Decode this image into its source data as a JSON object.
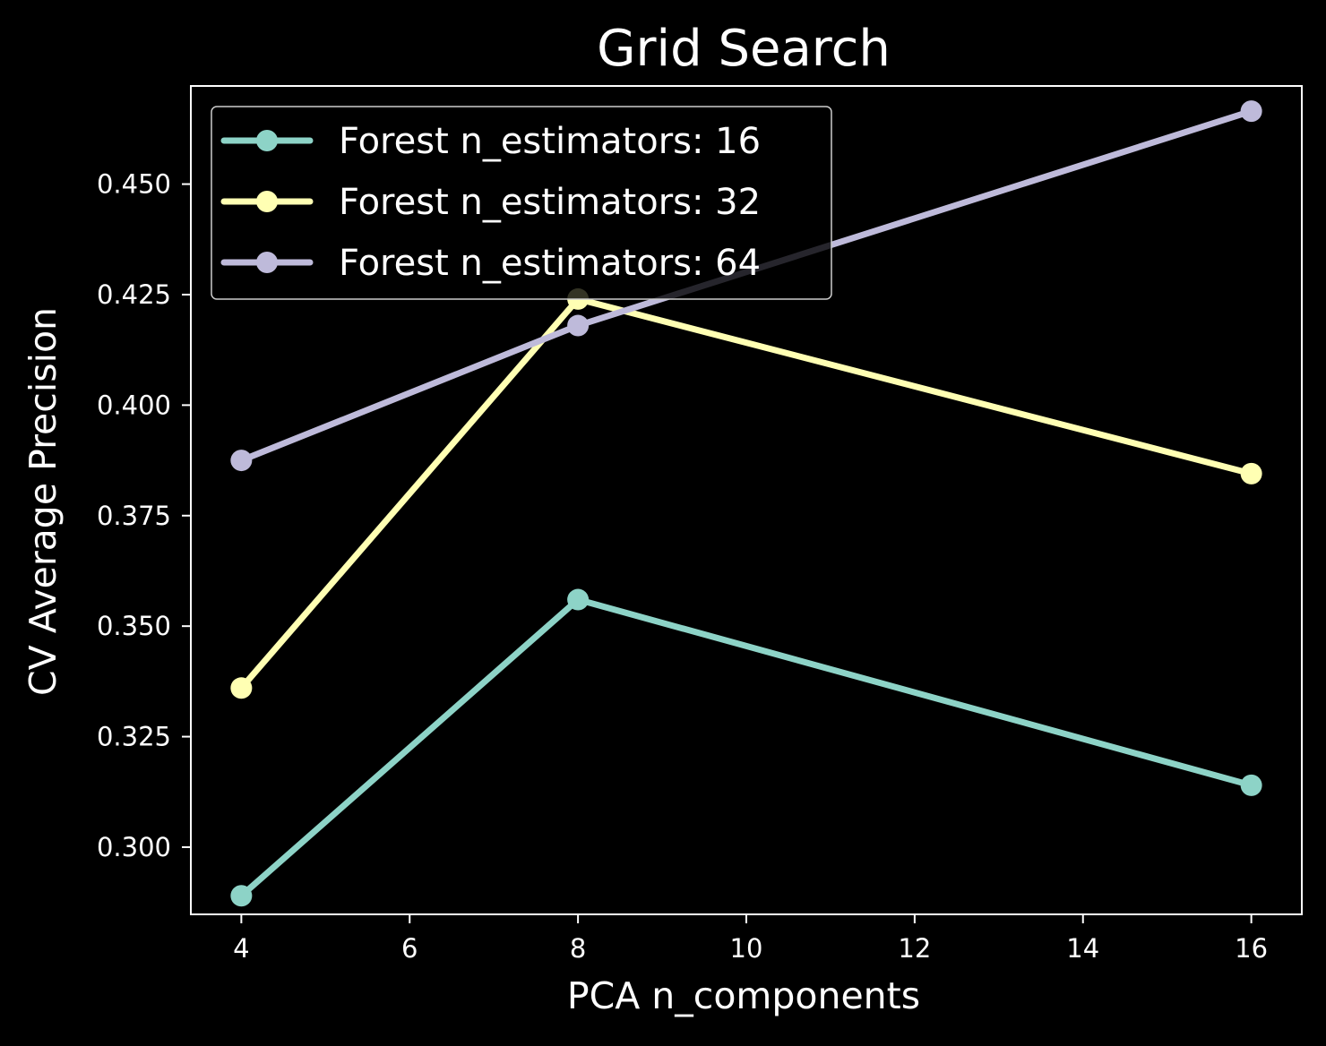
{
  "chart_data": {
    "type": "line",
    "title": "Grid Search",
    "xlabel": "PCA n_components",
    "ylabel": "CV Average Precision",
    "x": [
      4,
      8,
      16
    ],
    "xlim": [
      3.4,
      16.6
    ],
    "ylim": [
      0.2848,
      0.4722
    ],
    "xticks": [
      4,
      6,
      8,
      10,
      12,
      14,
      16
    ],
    "xtick_labels": [
      "4",
      "6",
      "8",
      "10",
      "12",
      "14",
      "16"
    ],
    "yticks": [
      0.3,
      0.325,
      0.35,
      0.375,
      0.4,
      0.425,
      0.45
    ],
    "ytick_labels": [
      "0.300",
      "0.325",
      "0.350",
      "0.375",
      "0.400",
      "0.425",
      "0.450"
    ],
    "grid": false,
    "legend_position": "upper-left",
    "background": "#000000",
    "series": [
      {
        "name": "Forest n_estimators: 16",
        "color": "#8dd3c7",
        "values": [
          0.289,
          0.356,
          0.314
        ]
      },
      {
        "name": "Forest n_estimators: 32",
        "color": "#ffffb3",
        "values": [
          0.336,
          0.424,
          0.3845
        ]
      },
      {
        "name": "Forest n_estimators: 64",
        "color": "#bebada",
        "values": [
          0.3875,
          0.418,
          0.4665
        ]
      }
    ]
  }
}
